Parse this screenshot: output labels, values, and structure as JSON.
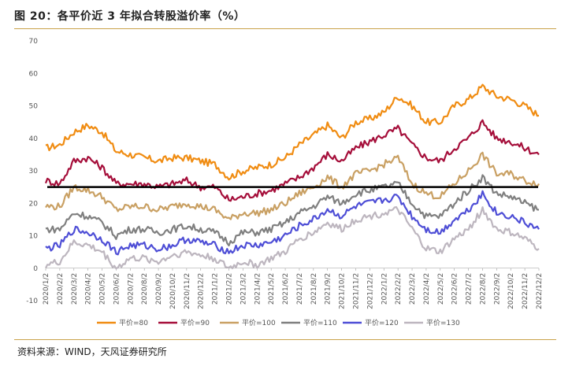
{
  "title": "图 20：各平价近 3 年拟合转股溢价率（%）",
  "source": "资料来源：WIND，天风证券研究所",
  "chart_data": {
    "type": "line",
    "title": "各平价近 3 年拟合转股溢价率（%）",
    "xlabel": "",
    "ylabel": "",
    "ylim": [
      -10,
      70
    ],
    "yticks": [
      -10,
      0,
      10,
      20,
      30,
      40,
      50,
      60,
      70
    ],
    "categories": [
      "2020/1/2",
      "2020/2/2",
      "2020/3/2",
      "2020/4/2",
      "2020/5/2",
      "2020/6/2",
      "2020/7/2",
      "2020/8/2",
      "2020/9/2",
      "2020/10/2",
      "2020/11/2",
      "2020/12/2",
      "2021/1/2",
      "2021/2/2",
      "2021/3/2",
      "2021/4/2",
      "2021/5/2",
      "2021/6/2",
      "2021/7/2",
      "2021/8/2",
      "2021/9/2",
      "2021/10/2",
      "2021/11/2",
      "2021/12/2",
      "2022/1/2",
      "2022/2/2",
      "2022/3/2",
      "2022/4/2",
      "2022/5/2",
      "2022/6/2",
      "2022/7/2",
      "2022/8/2",
      "2022/9/2",
      "2022/10/2",
      "2022/11/2",
      "2022/12/2"
    ],
    "legend_position": "bottom",
    "reference_line": 25,
    "series": [
      {
        "name": "平价=80",
        "color": "#f08c12",
        "values": [
          37,
          38,
          42,
          44,
          42,
          36,
          35,
          34,
          33,
          34,
          34,
          33,
          32,
          28,
          30,
          31,
          32,
          34,
          38,
          41,
          44,
          40,
          45,
          46,
          48,
          53,
          50,
          45,
          45,
          50,
          52,
          56,
          53,
          52,
          50,
          47
        ]
      },
      {
        "name": "平价=90",
        "color": "#a50e3a",
        "values": [
          27,
          26,
          33,
          34,
          31,
          26,
          26,
          26,
          25,
          26,
          27,
          25,
          25,
          21,
          22,
          23,
          24,
          26,
          28,
          31,
          35,
          33,
          37,
          39,
          41,
          43,
          38,
          34,
          33,
          37,
          40,
          45,
          40,
          39,
          37,
          35
        ]
      },
      {
        "name": "平价=100",
        "color": "#c9a063",
        "values": [
          19,
          19,
          25,
          24,
          22,
          18,
          19,
          19,
          18,
          19,
          20,
          19,
          18,
          15,
          17,
          17,
          18,
          20,
          23,
          25,
          28,
          25,
          29,
          30,
          32,
          34,
          26,
          23,
          22,
          26,
          30,
          35,
          29,
          29,
          27,
          26
        ]
      },
      {
        "name": "平价=110",
        "color": "#7f7f7f",
        "values": [
          12,
          12,
          17,
          16,
          14,
          10,
          12,
          12,
          11,
          12,
          13,
          12,
          11,
          8,
          11,
          11,
          12,
          14,
          17,
          19,
          22,
          20,
          23,
          24,
          25,
          26,
          20,
          16,
          16,
          20,
          24,
          28,
          23,
          22,
          20,
          18
        ]
      },
      {
        "name": "平价=120",
        "color": "#4e4ed6",
        "values": [
          6,
          7,
          12,
          11,
          9,
          5,
          7,
          7,
          6,
          7,
          9,
          8,
          7,
          5,
          7,
          7,
          8,
          10,
          13,
          15,
          18,
          16,
          19,
          20,
          21,
          22,
          16,
          12,
          11,
          15,
          18,
          23,
          17,
          16,
          14,
          12
        ]
      },
      {
        "name": "平价=130",
        "color": "#bdb6bf",
        "values": [
          1,
          2,
          8,
          7,
          5,
          0,
          3,
          3,
          2,
          4,
          5,
          4,
          3,
          0,
          2,
          1,
          3,
          5,
          9,
          11,
          14,
          12,
          15,
          16,
          17,
          18,
          12,
          6,
          5,
          9,
          12,
          18,
          12,
          11,
          9,
          6
        ]
      }
    ]
  }
}
